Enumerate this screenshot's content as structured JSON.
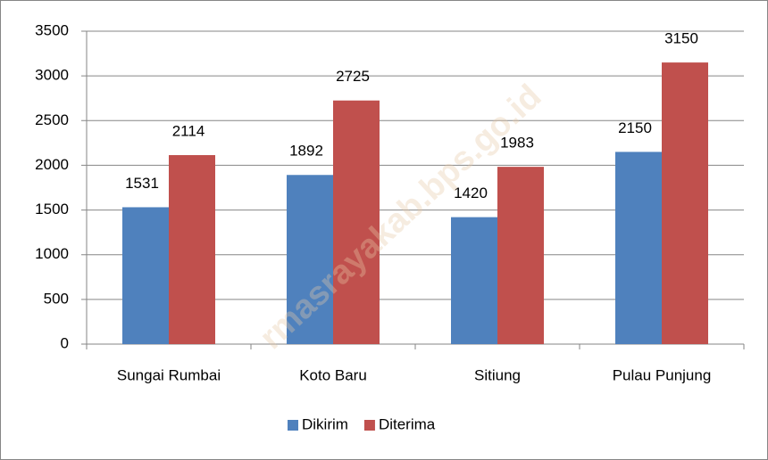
{
  "chart_data": {
    "type": "bar",
    "categories": [
      "Sungai Rumbai",
      "Koto Baru",
      "Sitiung",
      "Pulau Punjung"
    ],
    "series": [
      {
        "name": "Dikirim",
        "color": "#4f81bd",
        "values": [
          1531,
          1892,
          1420,
          2150
        ]
      },
      {
        "name": "Diterima",
        "color": "#c0504d",
        "values": [
          2114,
          2725,
          1983,
          3150
        ]
      }
    ],
    "ylim": [
      0,
      3500
    ],
    "yticks": [
      0,
      500,
      1000,
      1500,
      2000,
      2500,
      3000,
      3500
    ],
    "grid": true,
    "legend": "bottom",
    "watermark": "rmasrayakab.bps.go.id"
  }
}
